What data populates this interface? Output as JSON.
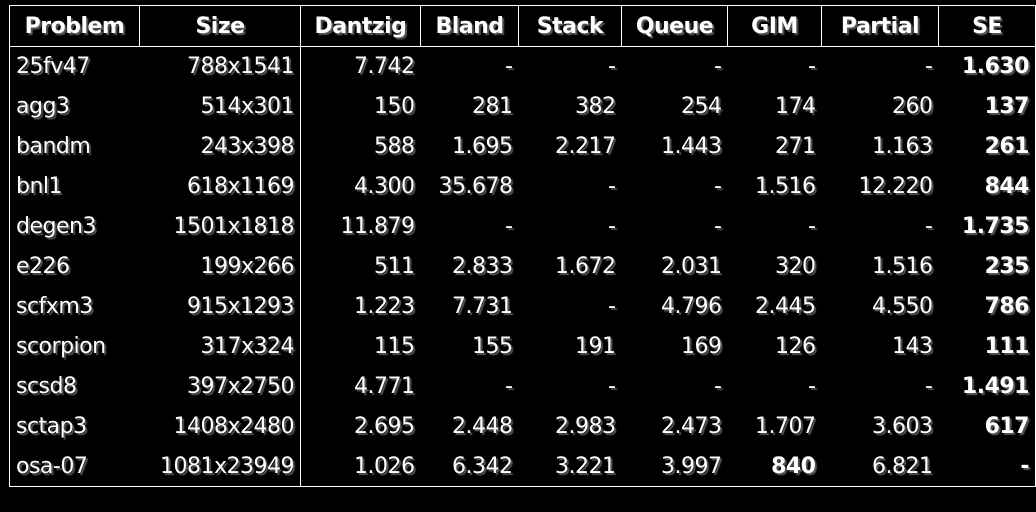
{
  "table": {
    "headers": [
      "Problem",
      "Size",
      "Dantzig",
      "Bland",
      "Stack",
      "Queue",
      "GIM",
      "Partial",
      "SE"
    ],
    "rows": [
      [
        "25fv47",
        "788x1541",
        "7.742",
        "-",
        "-",
        "-",
        "-",
        "-",
        "1.630"
      ],
      [
        "agg3",
        "514x301",
        "150",
        "281",
        "382",
        "254",
        "174",
        "260",
        "137"
      ],
      [
        "bandm",
        "243x398",
        "588",
        "1.695",
        "2.217",
        "1.443",
        "271",
        "1.163",
        "261"
      ],
      [
        "bnl1",
        "618x1169",
        "4.300",
        "35.678",
        "-",
        "-",
        "1.516",
        "12.220",
        "844"
      ],
      [
        "degen3",
        "1501x1818",
        "11.879",
        "-",
        "-",
        "-",
        "-",
        "-",
        "1.735"
      ],
      [
        "e226",
        "199x266",
        "511",
        "2.833",
        "1.672",
        "2.031",
        "320",
        "1.516",
        "235"
      ],
      [
        "scfxm3",
        "915x1293",
        "1.223",
        "7.731",
        "-",
        "4.796",
        "2.445",
        "4.550",
        "786"
      ],
      [
        "scorpion",
        "317x324",
        "115",
        "155",
        "191",
        "169",
        "126",
        "143",
        "111"
      ],
      [
        "scsd8",
        "397x2750",
        "4.771",
        "-",
        "-",
        "-",
        "-",
        "-",
        "1.491"
      ],
      [
        "sctap3",
        "1408x2480",
        "2.695",
        "2.448",
        "2.983",
        "2.473",
        "1.707",
        "3.603",
        "617"
      ],
      [
        "osa-07",
        "1081x23949",
        "1.026",
        "6.342",
        "3.221",
        "3.997",
        "840",
        "6.821",
        "-"
      ]
    ],
    "bold_cells": [
      [
        0,
        8
      ],
      [
        1,
        8
      ],
      [
        2,
        8
      ],
      [
        3,
        8
      ],
      [
        4,
        8
      ],
      [
        5,
        8
      ],
      [
        6,
        8
      ],
      [
        7,
        8
      ],
      [
        8,
        8
      ],
      [
        9,
        8
      ],
      [
        10,
        8
      ],
      [
        10,
        6
      ]
    ]
  }
}
